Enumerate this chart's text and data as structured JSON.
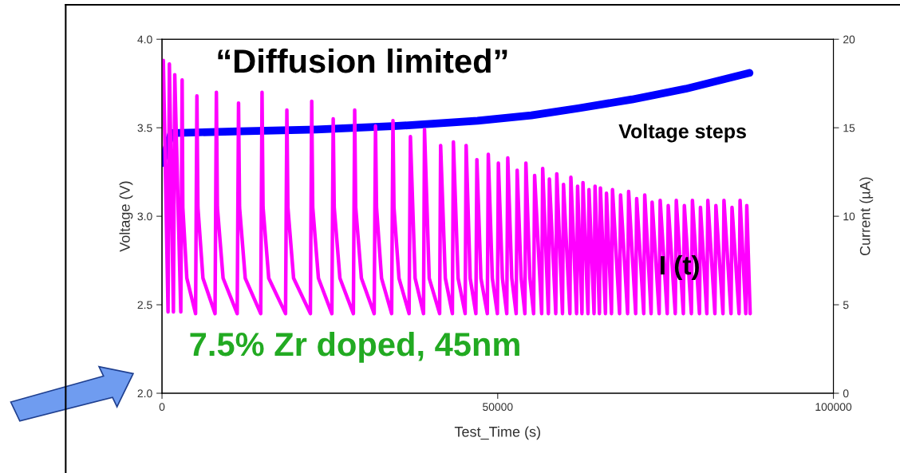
{
  "chart_data": {
    "type": "line",
    "xlabel": "Test_Time (s)",
    "ylabel": "Voltage (V)",
    "y2label": "Current (µA)",
    "xlim": [
      0,
      100000
    ],
    "xticks": [
      0,
      50000,
      100000
    ],
    "ylim": [
      2.0,
      4.0
    ],
    "yticks": [
      {
        "value": 2.0,
        "label": "2.0"
      },
      {
        "value": 2.5,
        "label": "2.5"
      },
      {
        "value": 3.0,
        "label": "3.0"
      },
      {
        "value": 3.5,
        "label": "3.5"
      },
      {
        "value": 4.0,
        "label": "4.0"
      }
    ],
    "y2lim": [
      0,
      20
    ],
    "y2ticks": [
      0,
      5,
      10,
      15,
      20
    ],
    "grid": false,
    "legend": false,
    "marker": "none",
    "line_style": "solid",
    "annotations": [
      "“Diffusion limited”",
      "Voltage steps",
      "I (t)",
      "7.5% Zr doped, 45nm"
    ],
    "series": [
      {
        "color": "#ff00ff",
        "axis": "y2",
        "x": [
          200,
          900,
          1100,
          1700,
          1900,
          2800,
          3000,
          3100,
          3700,
          5000,
          5200,
          5350,
          6100,
          7900,
          8100,
          8250,
          9100,
          11200,
          11400,
          11550,
          12400,
          14700,
          14900,
          15050,
          15900,
          18400,
          18600,
          18750,
          19600,
          22100,
          22300,
          22450,
          23300,
          25300,
          25500,
          25650,
          26500,
          28500,
          28700,
          28850,
          29700,
          31600,
          31800,
          31950,
          32700,
          34200,
          34400,
          34550,
          35300,
          36800,
          37000,
          37700,
          38950,
          39100,
          39800,
          41350,
          41500,
          42200,
          43250,
          43400,
          44100,
          45150,
          45300,
          45900,
          46750,
          46900,
          47500,
          48450,
          48600,
          49200,
          49950,
          50100,
          50700,
          51350,
          51500,
          52100,
          52750,
          52900,
          53500,
          54050,
          54200,
          54800,
          55350,
          55500,
          56550,
          56700,
          57550,
          57700,
          58650,
          58800,
          59650,
          59800,
          60750,
          60900,
          61750,
          61900,
          62550,
          62700,
          63450,
          63600,
          64350,
          64500,
          65150,
          65300,
          66050,
          66200,
          66950,
          67100,
          68150,
          68300,
          69350,
          69500,
          70550,
          70700,
          71750,
          71900,
          72850,
          73000,
          74050,
          74200,
          75250,
          75400,
          76450,
          76600,
          77650,
          77800,
          78850,
          79000,
          80050,
          80200,
          81150,
          81300,
          82350,
          82500,
          83550,
          83700,
          84750,
          84900,
          85950,
          86100,
          86950,
          87100,
          87600
        ],
        "values": [
          18.8,
          4.6,
          18.6,
          4.6,
          18.0,
          4.6,
          17.7,
          10.5,
          6.5,
          4.5,
          16.8,
          10.5,
          6.5,
          4.5,
          17.0,
          10.5,
          6.5,
          4.5,
          16.4,
          10.5,
          6.5,
          4.5,
          17.0,
          10.5,
          6.5,
          4.5,
          16.0,
          10.5,
          6.5,
          4.5,
          16.5,
          10.5,
          6.5,
          4.5,
          15.5,
          10.5,
          6.5,
          4.5,
          16.0,
          10.5,
          6.5,
          4.5,
          15.1,
          10.5,
          6.5,
          4.5,
          15.4,
          10.5,
          6.5,
          4.5,
          14.5,
          6.5,
          4.5,
          14.9,
          6.5,
          4.5,
          14.0,
          6.5,
          4.5,
          14.2,
          6.5,
          4.5,
          14.0,
          6.5,
          4.5,
          13.2,
          6.5,
          4.5,
          13.5,
          6.5,
          4.5,
          13.0,
          6.5,
          4.5,
          13.3,
          6.5,
          4.5,
          12.6,
          6.5,
          4.5,
          13.0,
          6.5,
          4.5,
          12.3,
          4.5,
          12.7,
          4.5,
          12.1,
          4.5,
          12.4,
          4.5,
          11.8,
          4.5,
          12.2,
          4.5,
          11.7,
          4.5,
          11.9,
          4.5,
          11.5,
          4.5,
          11.7,
          4.5,
          11.6,
          4.5,
          11.3,
          4.5,
          11.5,
          4.5,
          11.2,
          4.5,
          11.4,
          4.5,
          11.0,
          4.5,
          11.2,
          4.5,
          10.8,
          4.5,
          10.9,
          4.5,
          10.6,
          4.5,
          10.9,
          4.5,
          10.6,
          4.5,
          10.9,
          4.5,
          10.5,
          4.5,
          10.9,
          4.5,
          10.6,
          4.5,
          10.9,
          4.5,
          10.5,
          4.5,
          10.9,
          4.5,
          10.6,
          4.5
        ]
      },
      {
        "color": "#0000ff",
        "x": [
          0,
          1400,
          11500,
          23000,
          35000,
          47000,
          55000,
          62000,
          70000,
          78000,
          87500
        ],
        "values": [
          3.3,
          3.47,
          3.48,
          3.49,
          3.51,
          3.54,
          3.57,
          3.61,
          3.66,
          3.72,
          3.81
        ]
      }
    ]
  }
}
